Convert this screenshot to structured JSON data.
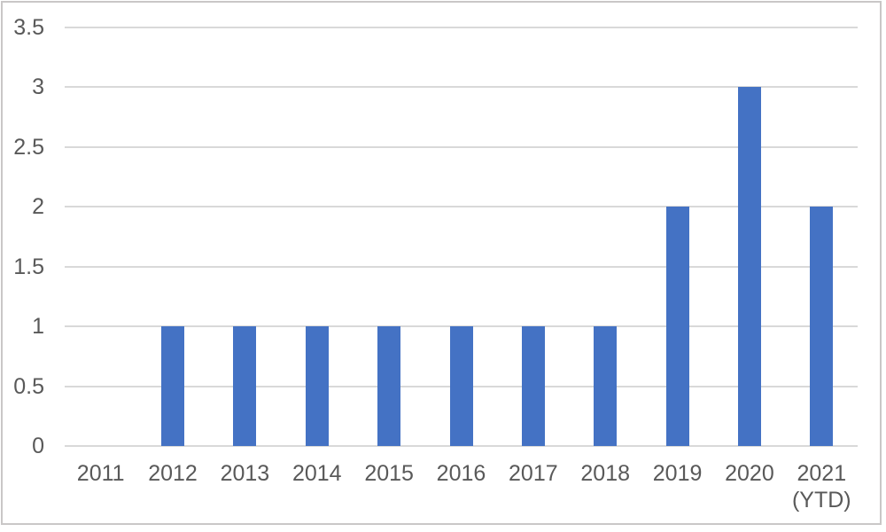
{
  "chart_data": {
    "type": "bar",
    "title": "",
    "xlabel": "",
    "ylabel": "",
    "categories": [
      "2011",
      "2012",
      "2013",
      "2014",
      "2015",
      "2016",
      "2017",
      "2018",
      "2019",
      "2020",
      "2021\n(YTD)"
    ],
    "values": [
      0,
      1,
      1,
      1,
      1,
      1,
      1,
      1,
      2,
      3,
      2
    ],
    "ylim": [
      0,
      3.5
    ],
    "ytick_step": 0.5,
    "yticks": [
      "0",
      "0.5",
      "1",
      "1.5",
      "2",
      "2.5",
      "3",
      "3.5"
    ],
    "grid": true,
    "legend": false,
    "colors": {
      "bar": "#4472C4",
      "gridline": "#D9D9D9",
      "axis_text": "#595959",
      "background": "#FFFFFF",
      "border": "#C9C7C7"
    }
  }
}
